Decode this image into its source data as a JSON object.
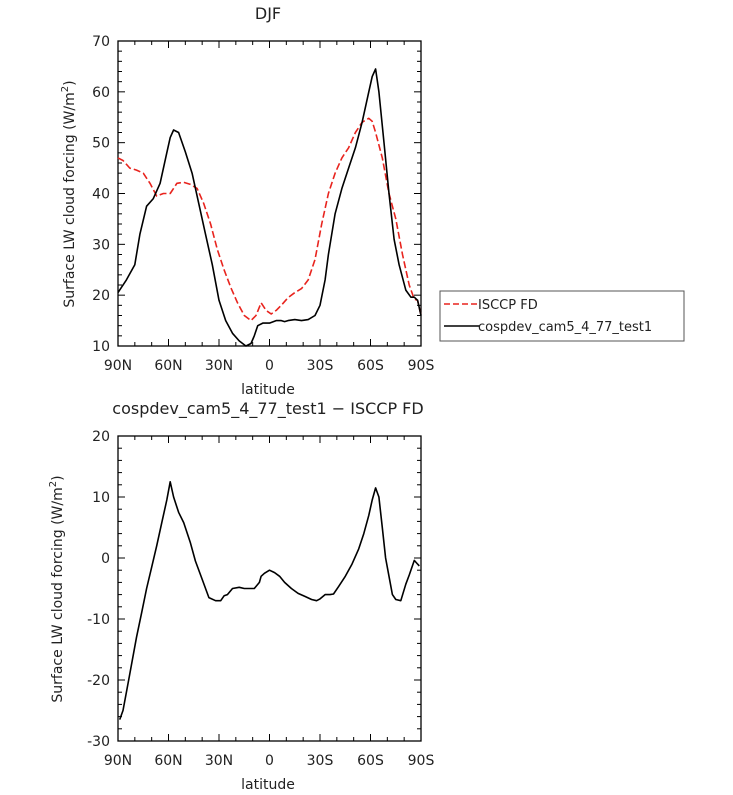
{
  "chart_data": [
    {
      "type": "line",
      "title": "DJF",
      "xlabel": "latitude",
      "ylabel_main": "Surface LW cloud forcing (W/m",
      "ylabel_sup": "2",
      "ylabel_end": ")",
      "xlim": [
        90,
        -90
      ],
      "ylim": [
        10,
        70
      ],
      "xticks": [
        {
          "value": 90,
          "label": "90N"
        },
        {
          "value": 60,
          "label": "60N"
        },
        {
          "value": 30,
          "label": "30N"
        },
        {
          "value": 0,
          "label": "0"
        },
        {
          "value": -30,
          "label": "30S"
        },
        {
          "value": -60,
          "label": "60S"
        },
        {
          "value": -90,
          "label": "90S"
        }
      ],
      "yticks": [
        10,
        20,
        30,
        40,
        50,
        60,
        70
      ],
      "legend": "outside-right",
      "series": [
        {
          "name": "ISCCP FD",
          "color": "#e8241e",
          "dash": "dashed",
          "x": [
            90,
            87,
            83,
            79,
            75,
            71,
            67,
            63,
            59,
            55,
            51,
            47,
            43,
            39,
            35,
            31,
            27,
            23,
            19,
            15,
            11,
            8,
            5,
            2,
            -1,
            -4,
            -7,
            -11,
            -15,
            -19,
            -23,
            -27,
            -31,
            -35,
            -39,
            -43,
            -47,
            -51,
            -55,
            -59,
            -61,
            -63,
            -67,
            -71,
            -75,
            -79,
            -83,
            -86,
            -88,
            -90
          ],
          "y": [
            47,
            46.5,
            45,
            44.6,
            44,
            42,
            39.5,
            40,
            40,
            42,
            42.2,
            41.8,
            41,
            38,
            34,
            29,
            25,
            21.5,
            18.5,
            16,
            15,
            16,
            18.5,
            17,
            16.3,
            17,
            18,
            19.5,
            20.5,
            21.3,
            23,
            27,
            34,
            40,
            44,
            47,
            49,
            52,
            54,
            54.8,
            54.2,
            52,
            47,
            40,
            35,
            28,
            22,
            19.2,
            19,
            16
          ]
        },
        {
          "name": "cospdev_cam5_4_77_test1",
          "color": "#000000",
          "dash": "solid",
          "x": [
            90,
            85,
            80,
            77,
            73,
            69,
            65,
            61,
            59,
            57,
            54,
            50,
            46,
            42,
            38,
            34,
            30,
            26,
            22,
            18,
            14,
            11,
            9,
            7,
            4,
            2,
            0,
            -4,
            -7,
            -9,
            -11,
            -15,
            -19,
            -23,
            -27,
            -30,
            -33,
            -35,
            -39,
            -43,
            -47,
            -51,
            -55,
            -59,
            -61,
            -63,
            -65,
            -68,
            -71,
            -74,
            -77,
            -81,
            -84,
            -86,
            -88,
            -90
          ],
          "y": [
            20.5,
            23,
            26,
            32,
            37.5,
            39,
            42,
            48,
            51,
            52.5,
            52,
            48.2,
            44,
            38,
            32,
            26,
            19,
            15,
            12.5,
            11,
            10,
            10.5,
            12,
            14,
            14.5,
            14.5,
            14.5,
            15,
            15,
            14.8,
            15,
            15.2,
            15,
            15.2,
            16,
            18,
            23,
            28,
            36,
            41,
            45,
            49,
            54,
            60,
            63,
            64.5,
            60,
            50,
            40,
            31,
            26,
            21,
            19.6,
            19.6,
            19,
            16
          ]
        }
      ]
    },
    {
      "type": "line",
      "title": "cospdev_cam5_4_77_test1 − ISCCP FD",
      "xlabel": "latitude",
      "ylabel_main": "Surface LW cloud forcing (W/m",
      "ylabel_sup": "2",
      "ylabel_end": ")",
      "xlim": [
        90,
        -90
      ],
      "ylim": [
        -30,
        20
      ],
      "xticks": [
        {
          "value": 90,
          "label": "90N"
        },
        {
          "value": 60,
          "label": "60N"
        },
        {
          "value": 30,
          "label": "30N"
        },
        {
          "value": 0,
          "label": "0"
        },
        {
          "value": -30,
          "label": "30S"
        },
        {
          "value": -60,
          "label": "60S"
        },
        {
          "value": -90,
          "label": "90S"
        }
      ],
      "yticks": [
        -30,
        -20,
        -10,
        0,
        10,
        20
      ],
      "series": [
        {
          "color": "#000000",
          "dash": "solid",
          "x": [
            89,
            87,
            83,
            79,
            76,
            73,
            70,
            67,
            64,
            61,
            59,
            57,
            54,
            51,
            47,
            44,
            40,
            36,
            32,
            29,
            27,
            25,
            22,
            18,
            15,
            12,
            9,
            6,
            5,
            3,
            0,
            -3,
            -6,
            -9,
            -13,
            -17,
            -21,
            -25,
            -28,
            -30,
            -33,
            -36,
            -38,
            -41,
            -45,
            -49,
            -53,
            -56,
            -59,
            -61,
            -63,
            -65,
            -67,
            -69,
            -71,
            -73,
            -75,
            -78,
            -81,
            -83,
            -86,
            -88,
            -89
          ],
          "y": [
            -26.5,
            -25,
            -19,
            -13,
            -9,
            -5,
            -1.5,
            2,
            5.8,
            9.5,
            12.5,
            10,
            7.5,
            5.8,
            2.5,
            -0.5,
            -3.5,
            -6.5,
            -7,
            -7,
            -6.2,
            -6,
            -5,
            -4.8,
            -5,
            -5,
            -5,
            -4,
            -3,
            -2.5,
            -2,
            -2.4,
            -3,
            -4,
            -5,
            -5.8,
            -6.3,
            -6.8,
            -7,
            -6.7,
            -6,
            -6,
            -5.9,
            -4.7,
            -3,
            -1,
            1.5,
            4,
            7,
            9.5,
            11.5,
            10,
            5,
            0,
            -3,
            -6,
            -6.8,
            -7,
            -4.3,
            -2.8,
            -0.4,
            -1,
            -1.3
          ]
        }
      ]
    }
  ]
}
